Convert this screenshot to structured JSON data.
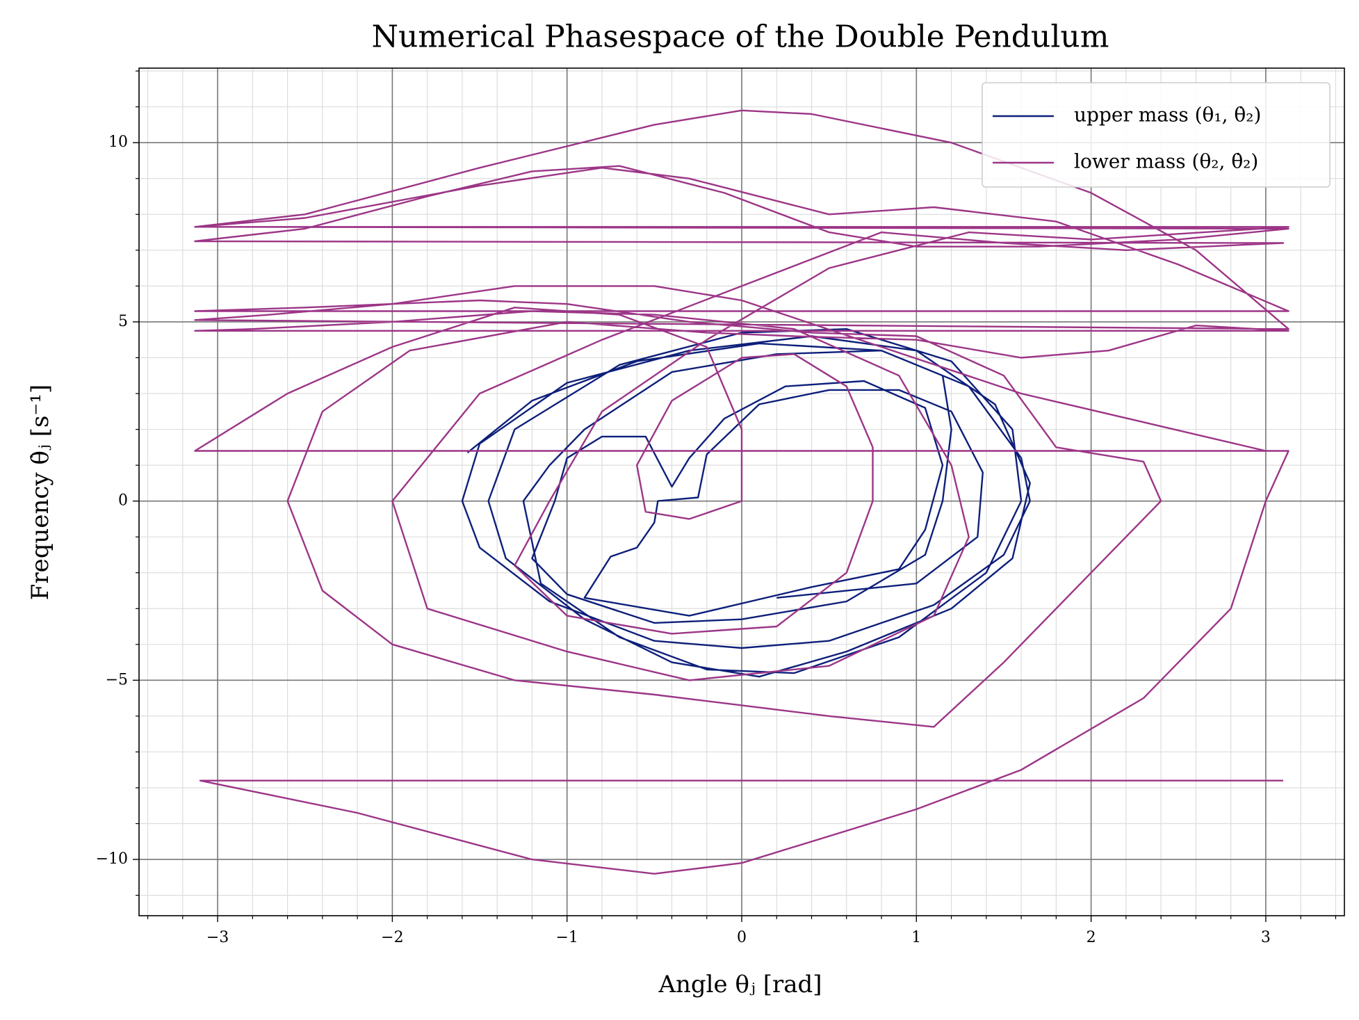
{
  "chart_data": {
    "type": "line",
    "title": "Numerical Phasespace of the Double Pendulum",
    "xlabel": "Angle θⱼ [rad]",
    "ylabel": "Frequency θ̇ⱼ [s⁻¹]",
    "xlim": [
      -3.45,
      3.45
    ],
    "ylim": [
      -11.57,
      12.08
    ],
    "xticks": [
      {
        "value": -3,
        "label": "−3"
      },
      {
        "value": -2,
        "label": "−2"
      },
      {
        "value": -1,
        "label": "−1"
      },
      0,
      1,
      2,
      3
    ],
    "yticks": [
      {
        "value": -10,
        "label": "−10"
      },
      {
        "value": -5,
        "label": "−5"
      },
      0,
      5,
      10
    ],
    "xticks_minor": [
      -3.4,
      -3.2,
      -2.8,
      -2.6,
      -2.4,
      -2.2,
      -1.8,
      -1.6,
      -1.4,
      -1.2,
      -0.8,
      -0.6,
      -0.4,
      -0.2,
      0.2,
      0.4,
      0.6,
      0.8,
      1.2,
      1.4,
      1.6,
      1.8,
      2.2,
      2.4,
      2.6,
      2.8,
      3.2,
      3.4
    ],
    "yticks_minor": [
      -11,
      -9,
      -8,
      -7,
      -6,
      -4,
      -3,
      -2,
      -1,
      1,
      2,
      3,
      4,
      6,
      7,
      8,
      9,
      11,
      12
    ],
    "grid": true,
    "legend": "upper right",
    "series": [
      {
        "name": "upper mass (θ₁, θ̇₂)",
        "color": "#0d1f7a",
        "x": [
          -1.57,
          -1.2,
          -0.6,
          0.1,
          0.8,
          1.3,
          1.6,
          1.65,
          1.5,
          1.1,
          0.5,
          0,
          -0.5,
          -1.1,
          -1.5,
          -1.6,
          -1.5,
          -1.0,
          -0.3,
          0.4,
          1.0,
          1.45,
          1.65,
          1.55,
          1.2,
          0.6,
          0.1,
          -0.4,
          -0.9,
          -1.35,
          -1.45,
          -1.3,
          -0.7,
          0.0,
          0.6,
          1.2,
          1.55,
          1.6,
          1.4,
          0.9,
          0.3,
          -0.2,
          -0.7,
          -1.15,
          -1.25,
          -1.1,
          -0.9,
          -0.4,
          0.2,
          0.8,
          1.15,
          1.2,
          1.15,
          1.05,
          0.6,
          0,
          -0.5,
          -1.0,
          -1.2,
          -1.07,
          -1.0,
          -0.8,
          -0.55,
          -0.4,
          -0.3,
          -0.1,
          0.25,
          0.7,
          1.05,
          1.15,
          1.05,
          0.9,
          0.4,
          -0.3,
          -0.9,
          -0.75,
          -0.6,
          -0.5,
          -0.48,
          -0.25,
          -0.2,
          0.1,
          0.5,
          0.9,
          1.2,
          1.38,
          1.35,
          1.0,
          0.2
        ],
        "values": [
          1.35,
          2.8,
          3.9,
          4.4,
          4.2,
          3.2,
          1.2,
          0,
          -1.5,
          -2.9,
          -3.9,
          -4.1,
          -3.9,
          -2.8,
          -1.3,
          0,
          1.6,
          3.3,
          4.2,
          4.6,
          4.2,
          2.7,
          0.5,
          -1.6,
          -3.0,
          -4.2,
          -4.9,
          -4.5,
          -3.3,
          -1.6,
          0,
          2.0,
          3.8,
          4.7,
          4.8,
          3.9,
          2.0,
          0,
          -2.0,
          -3.8,
          -4.8,
          -4.7,
          -3.8,
          -2.3,
          0,
          1.0,
          2.0,
          3.6,
          4.1,
          4.2,
          3.5,
          2.0,
          0,
          -1.5,
          -2.8,
          -3.3,
          -3.4,
          -2.6,
          -1.6,
          0,
          1.2,
          1.8,
          1.8,
          0.4,
          1.2,
          2.3,
          3.2,
          3.35,
          2.6,
          1.0,
          -0.8,
          -1.9,
          -2.4,
          -3.2,
          -2.7,
          -1.55,
          -1.3,
          -0.6,
          0,
          0.1,
          1.3,
          2.7,
          3.1,
          3.1,
          2.5,
          0.8,
          -1.0,
          -2.3,
          -2.7
        ]
      },
      {
        "name": "lower mass (θ₂, θ̇₂)",
        "color": "#9c3587",
        "x": [
          3.1,
          -3.1,
          -2.2,
          -1.2,
          -0.5,
          0,
          1.0,
          1.6,
          2.3,
          2.8,
          3.0,
          3.13,
          -3.13,
          -2.6,
          -2.0,
          -1.3,
          -0.7,
          -0.2,
          0,
          0,
          -0.3,
          -0.55,
          -0.6,
          -0.4,
          0,
          0.3,
          0.6,
          0.75,
          0.75,
          0.6,
          0.2,
          -0.4,
          -1.0,
          -1.3,
          -1.1,
          -0.8,
          -0.2,
          0.5,
          1.3,
          2.0,
          3.13,
          -3.13,
          -2.5,
          -1.5,
          -0.8,
          -0.3,
          0.5,
          1.1,
          1.8,
          2.5,
          3.13,
          -3.13,
          -2.5,
          -1.5,
          -1.0,
          -0.3,
          0.4,
          1.0,
          1.5,
          1.8,
          2.3,
          2.4,
          2.0,
          1.5,
          1.1,
          0.5,
          -0.5,
          -1.3,
          -2.0,
          -2.4,
          -2.6,
          -2.4,
          -1.9,
          -1.0,
          -0.2,
          0.3,
          1.0,
          1.6,
          2.1,
          2.6,
          3.13,
          -3.13,
          -2.8,
          -2.0,
          -1.2,
          -0.5,
          0.3,
          0.9,
          1.2,
          1.3,
          1.1,
          0.5,
          -0.3,
          -1.0,
          -1.8,
          -2.0,
          -1.5,
          -0.8,
          0,
          0.8,
          1.5,
          2.2,
          3.1,
          -3.13,
          -2.5,
          -1.8,
          -1.2,
          -0.7,
          -0.1,
          0.5,
          1.0,
          1.7,
          2.5,
          3.13,
          -3.13,
          -2.5,
          -1.5,
          -0.5,
          0,
          0.4,
          1.2,
          2.0,
          2.6,
          3.13,
          -3.13,
          -2.7,
          -2.0,
          -1.3,
          -0.5,
          0,
          0.8,
          1.6,
          2.3,
          3.0
        ],
        "values": [
          -7.8,
          -7.8,
          -8.7,
          -10.0,
          -10.4,
          -10.1,
          -8.6,
          -7.5,
          -5.5,
          -3.0,
          0,
          1.4,
          1.4,
          3.0,
          4.3,
          5.4,
          5.2,
          4.3,
          2.0,
          0,
          -0.5,
          -0.3,
          1.0,
          2.8,
          4.0,
          4.1,
          3.2,
          1.5,
          0,
          -2.0,
          -3.5,
          -3.7,
          -3.2,
          -1.8,
          0,
          2.5,
          4.5,
          6.5,
          7.5,
          7.3,
          7.65,
          7.65,
          7.9,
          8.8,
          9.3,
          9.0,
          8.0,
          8.2,
          7.8,
          6.6,
          5.3,
          5.3,
          5.4,
          5.6,
          5.5,
          5.0,
          4.7,
          4.6,
          3.5,
          1.5,
          1.1,
          0,
          -2.0,
          -4.5,
          -6.3,
          -6.0,
          -5.4,
          -5.0,
          -4.0,
          -2.5,
          0,
          2.5,
          4.2,
          5.0,
          4.7,
          4.6,
          4.5,
          4.0,
          4.2,
          4.9,
          4.75,
          4.75,
          4.8,
          5.0,
          5.3,
          5.2,
          4.8,
          3.5,
          1.0,
          -1.0,
          -3.2,
          -4.6,
          -5.0,
          -4.2,
          -3.0,
          0,
          3.0,
          4.5,
          6.0,
          7.5,
          7.2,
          7.0,
          7.2,
          7.25,
          7.6,
          8.5,
          9.2,
          9.35,
          8.6,
          7.5,
          7.1,
          7.1,
          7.3,
          7.6,
          7.65,
          8.0,
          9.3,
          10.5,
          10.9,
          10.8,
          10.0,
          8.6,
          7.0,
          4.8,
          5.05,
          5.2,
          5.5,
          6.0,
          6.0,
          5.6,
          4.3,
          3.0,
          2.2,
          1.4
        ]
      }
    ]
  }
}
